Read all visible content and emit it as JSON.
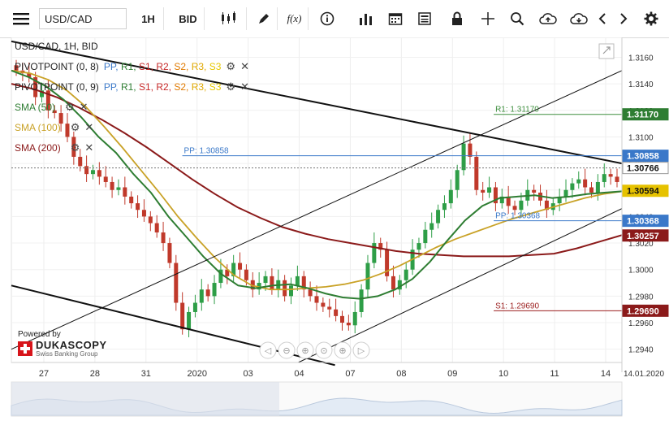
{
  "toolbar": {
    "menu_icon": "hamburger-icon",
    "symbol": "USD/CAD",
    "timeframe": "1H",
    "price_side": "BID",
    "icons": [
      "candles-icon",
      "pencil-icon",
      "fx-icon",
      "info-icon",
      "bar-chart-icon",
      "calendar-icon",
      "news-icon",
      "lock-icon",
      "crosshair-icon",
      "zoom-icon",
      "cloud-upload-icon",
      "cloud-download-icon",
      "chevron-left-icon",
      "chevron-right-icon",
      "gear-icon"
    ]
  },
  "legend": {
    "title": "USD/CAD, 1H, BID",
    "pivot1": {
      "label": "PIVOTPOINT (0, 8)",
      "items": [
        {
          "t": "PP",
          "c": "#3a78c9"
        },
        {
          "t": "R1",
          "c": "#2e7d32"
        },
        {
          "t": "S1",
          "c": "#c62828"
        },
        {
          "t": "R2",
          "c": "#c62828"
        },
        {
          "t": "S2",
          "c": "#e07a00"
        },
        {
          "t": "R3",
          "c": "#e0a800"
        },
        {
          "t": "S3",
          "c": "#e6c800"
        }
      ]
    },
    "pivot2": {
      "label": "PIVOTPOINT (0, 9)",
      "items": [
        {
          "t": "PP",
          "c": "#3a78c9"
        },
        {
          "t": "R1",
          "c": "#2e7d32"
        },
        {
          "t": "S1",
          "c": "#c62828"
        },
        {
          "t": "R2",
          "c": "#c62828"
        },
        {
          "t": "S2",
          "c": "#e07a00"
        },
        {
          "t": "R3",
          "c": "#e0a800"
        },
        {
          "t": "S3",
          "c": "#e6c800"
        }
      ]
    },
    "sma50": "SMA (50)",
    "sma100": "SMA (100)",
    "sma200": "SMA (200)"
  },
  "logo": {
    "powered": "Powered by",
    "brand": "DUKASCOPY",
    "sub": "Swiss Banking Group"
  },
  "chart_data": {
    "type": "line",
    "series_type": "candlestick",
    "title": "USD/CAD, 1H, BID",
    "x_ticks": [
      "27",
      "28",
      "31",
      "2020",
      "03",
      "04",
      "07",
      "08",
      "09",
      "10",
      "11",
      "14"
    ],
    "x_date_label": "14.01.2020",
    "y_ticks": [
      1.316,
      1.314,
      1.312,
      1.31,
      1.308,
      1.306,
      1.304,
      1.302,
      1.3,
      1.298,
      1.296,
      1.294
    ],
    "ylim": [
      1.293,
      1.3175
    ],
    "y_decimals": 5,
    "colors": {
      "up": "#2e9e47",
      "down": "#c0392b",
      "sma50": "#2e7d32",
      "sma100": "#c9a227",
      "sma200": "#8b1a1a",
      "pp": "#3a78c9",
      "r1": "#3f8f3f",
      "s1": "#9c1f1f",
      "channel": "#111"
    },
    "price_labels": [
      {
        "value": 1.3117,
        "text": "1.31170",
        "bg": "#2e7d32",
        "fg": "#fff"
      },
      {
        "value": 1.30858,
        "text": "1.30858",
        "bg": "#3a78c9",
        "fg": "#fff"
      },
      {
        "value": 1.30766,
        "text": "1.30766",
        "bg": "#fff",
        "fg": "#111"
      },
      {
        "value": 1.30594,
        "text": "1.30594",
        "bg": "#e6c200",
        "fg": "#111"
      },
      {
        "value": 1.30368,
        "text": "1.30368",
        "bg": "#3a78c9",
        "fg": "#fff"
      },
      {
        "value": 1.30257,
        "text": "1.30257",
        "bg": "#8b1a1a",
        "fg": "#fff"
      },
      {
        "value": 1.2969,
        "text": "1.29690",
        "bg": "#8b1a1a",
        "fg": "#fff"
      }
    ],
    "level_annotations": [
      {
        "text": "R1: 1.31170",
        "value": 1.3117,
        "color": "#3f8f3f",
        "x0": 0.79,
        "x1": 1.0
      },
      {
        "text": "PP: 1.30858",
        "value": 1.30858,
        "color": "#3a78c9",
        "x0": 0.28,
        "x1": 1.0
      },
      {
        "text": "PP: 1.30368",
        "value": 1.30368,
        "color": "#3a78c9",
        "x0": 0.79,
        "x1": 1.0
      },
      {
        "text": "S1: 1.29690",
        "value": 1.2969,
        "color": "#9c1f1f",
        "x0": 0.79,
        "x1": 1.0
      }
    ],
    "close_series": [
      1.315,
      1.3148,
      1.3145,
      1.313,
      1.3135,
      1.312,
      1.3118,
      1.311,
      1.31,
      1.3085,
      1.3078,
      1.3072,
      1.3075,
      1.307,
      1.3066,
      1.306,
      1.3062,
      1.3055,
      1.305,
      1.3045,
      1.304,
      1.3035,
      1.3028,
      1.302,
      1.3005,
      1.2975,
      1.2955,
      1.2968,
      1.2975,
      1.2985,
      1.298,
      1.299,
      1.3,
      1.2995,
      1.3005,
      1.3,
      1.2992,
      1.2985,
      1.299,
      1.2995,
      1.2985,
      1.2992,
      1.298,
      1.2988,
      1.2995,
      1.2985,
      1.298,
      1.2975,
      1.2972,
      1.297,
      1.2965,
      1.296,
      1.2958,
      1.2968,
      1.2985,
      1.3005,
      1.302,
      1.3015,
      1.2995,
      1.2985,
      1.2992,
      1.3,
      1.3015,
      1.302,
      1.303,
      1.3035,
      1.3045,
      1.305,
      1.306,
      1.3075,
      1.3095,
      1.3085,
      1.306,
      1.3058,
      1.3062,
      1.305,
      1.3055,
      1.3048,
      1.3045,
      1.3052,
      1.306,
      1.3058,
      1.3052,
      1.3045,
      1.305,
      1.3055,
      1.306,
      1.3065,
      1.3068,
      1.3062,
      1.3058,
      1.3066,
      1.3072,
      1.307,
      1.3066
    ],
    "sma50": [
      1.315,
      1.3145,
      1.3138,
      1.3128,
      1.3115,
      1.31,
      1.3088,
      1.3072,
      1.3058,
      1.304,
      1.3025,
      1.301,
      1.2997,
      1.2988,
      1.2986,
      1.2988,
      1.2989,
      1.2986,
      1.2982,
      1.2979,
      1.2978,
      1.298,
      1.2985,
      1.2993,
      1.3006,
      1.3022,
      1.3037,
      1.3048,
      1.3054,
      1.3055,
      1.3056,
      1.3054,
      1.3055,
      1.3057,
      1.3058,
      1.3059
    ],
    "sma100": [
      1.315,
      1.3148,
      1.3143,
      1.3135,
      1.3123,
      1.3108,
      1.3092,
      1.3075,
      1.3058,
      1.304,
      1.3024,
      1.3009,
      1.2996,
      1.2988,
      1.2985,
      1.2985,
      1.2986,
      1.2987,
      1.2989,
      1.2992,
      1.2997,
      1.3003,
      1.301,
      1.3017,
      1.3023,
      1.3028,
      1.3033,
      1.3038,
      1.3042,
      1.3046,
      1.305,
      1.3054,
      1.3057,
      1.3059
    ],
    "sma200": [
      1.314,
      1.3136,
      1.313,
      1.3122,
      1.3113,
      1.3103,
      1.3092,
      1.308,
      1.3068,
      1.3057,
      1.3047,
      1.3039,
      1.3032,
      1.3027,
      1.3023,
      1.302,
      1.3017,
      1.3014,
      1.3012,
      1.3011,
      1.301,
      1.301,
      1.301,
      1.3011,
      1.3012,
      1.3016,
      1.3021,
      1.3026
    ]
  }
}
